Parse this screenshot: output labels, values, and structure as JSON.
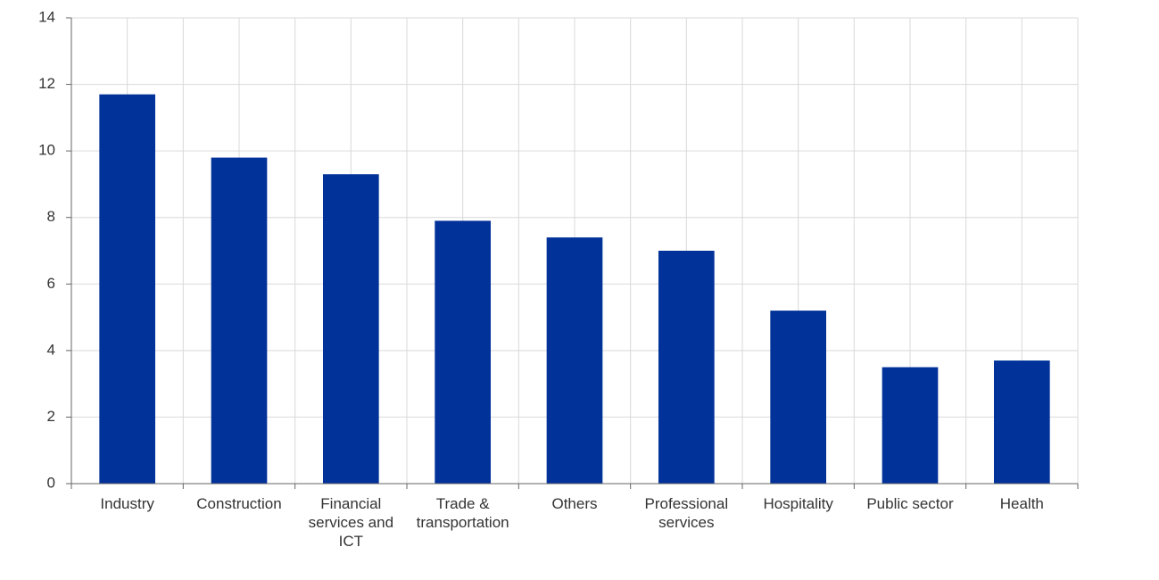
{
  "chart_data": {
    "type": "bar",
    "categories": [
      "Industry",
      "Construction",
      "Financial services and ICT",
      "Trade & transportation",
      "Others",
      "Professional services",
      "Hospitality",
      "Public sector",
      "Health"
    ],
    "values": [
      11.7,
      9.8,
      9.3,
      7.9,
      7.4,
      7.0,
      5.2,
      3.5,
      3.7
    ],
    "color": "#003299",
    "ylim": [
      0,
      14
    ],
    "yticks": [
      0,
      2,
      4,
      6,
      8,
      10,
      12,
      14
    ],
    "grid": true
  }
}
